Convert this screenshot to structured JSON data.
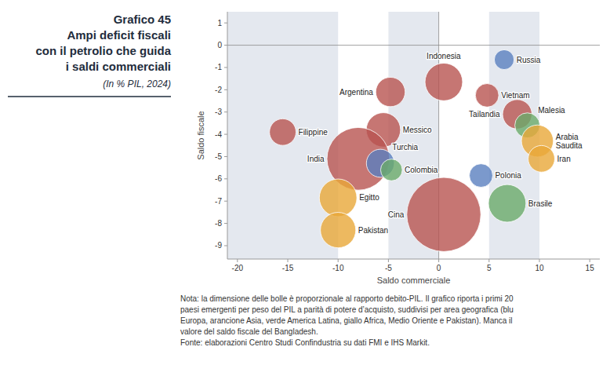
{
  "chart_data": {
    "type": "bubble",
    "title": "Grafico 45\nAmpi deficit fiscali\ncon il petrolio che guida\ni saldi commerciali",
    "subtitle": "(In % PIL, 2024)",
    "xlabel": "Saldo commerciale",
    "ylabel": "Saldo fiscale",
    "notes": [
      "Nota: la dimensione delle bolle è proporzionale al rapporto debito-PIL. Il grafico riporta i primi 20",
      "paesi emergenti per peso del PIL a parità di potere d’acquisto, suddivisi per area geografica (blu",
      "Europa, arancione Asia, verde America Latina, giallo Africa, Medio Oriente e Pakistan). Manca il",
      "valore del saldo fiscale del Bangladesh.",
      "Fonte: elaborazioni Centro Studi Confindustria su dati FMI e IHS Markit."
    ],
    "labels": [
      "Russia",
      "Indonesia",
      "Vietnam",
      "Argentina",
      "Tailandia",
      "Messico",
      "Malesia",
      "Arabia\nSaudita",
      "Iran",
      "Filippine",
      "India",
      "Turchia",
      "Colombia",
      "Polonia",
      "Cina",
      "Brasile",
      "Egitto",
      "Pakistan"
    ],
    "x": [
      6.5,
      0.5,
      4.8,
      -4.8,
      7.8,
      -5.5,
      8.8,
      9.8,
      10.2,
      -15.5,
      -8.0,
      -5.8,
      -4.7,
      4.2,
      0.5,
      6.8,
      -10.0,
      -10.0
    ],
    "values": [
      -0.65,
      -1.65,
      -2.25,
      -2.1,
      -3.1,
      -3.8,
      -3.6,
      -4.3,
      -5.1,
      -3.9,
      -5.1,
      -5.3,
      -5.6,
      -5.85,
      -7.6,
      -7.1,
      -6.85,
      -8.3
    ],
    "sizes": [
      500,
      1800,
      700,
      1100,
      1100,
      1500,
      800,
      1300,
      900,
      900,
      5000,
      1000,
      600,
      700,
      7000,
      1800,
      1800,
      1600
    ],
    "colors": [
      "#5a7fbf",
      "#b85450",
      "#b85450",
      "#b85450",
      "#b85450",
      "#b85450",
      "#6aaa6a",
      "#e8a838",
      "#e8a838",
      "#b85450",
      "#b85450",
      "#5a7fbf",
      "#6aaa6a",
      "#5a7fbf",
      "#b85450",
      "#6aaa6a",
      "#e8a838",
      "#e8a838"
    ],
    "bands": [
      {
        "xmin": -21,
        "xmax": -10,
        "color": "#e4e8ef"
      },
      {
        "xmin": -5,
        "xmax": 0,
        "color": "#e4e8ef"
      },
      {
        "xmin": 5,
        "xmax": 10,
        "color": "#e4e8ef"
      }
    ],
    "xlim": [
      -21,
      16
    ],
    "ylim": [
      -9.6,
      1.5
    ],
    "xticks": [
      -20,
      -15,
      -10,
      -5,
      0,
      5,
      10,
      15
    ],
    "yticks": [
      -9,
      -8,
      -7,
      -6,
      -5,
      -4,
      -3,
      -2,
      -1,
      0,
      1
    ],
    "grid": false
  }
}
